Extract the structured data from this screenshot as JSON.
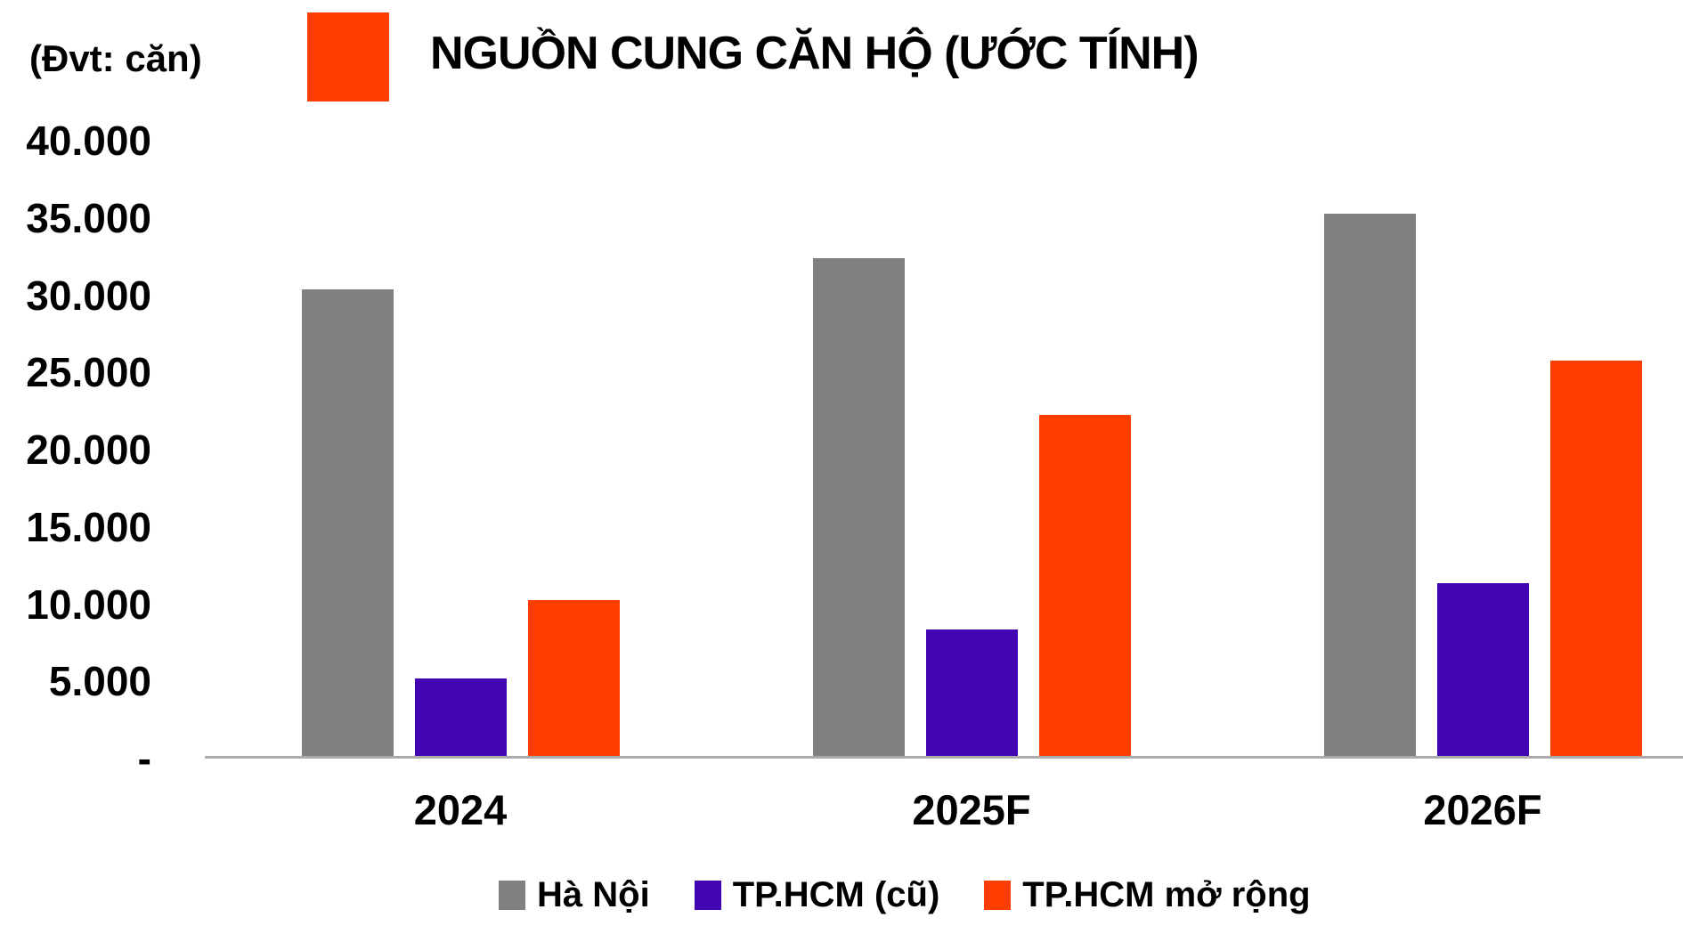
{
  "chart_data": {
    "type": "bar",
    "title": "NGUỒN CUNG CĂN HỘ (ƯỚC TÍNH)",
    "unit_label": "(Đvt: căn)",
    "title_marker_color": "#FF3D00",
    "categories": [
      "2024",
      "2025F",
      "2026F"
    ],
    "series": [
      {
        "name": "Hà Nội",
        "color": "#808080",
        "values": [
          30200,
          32200,
          35100
        ]
      },
      {
        "name": "TP.HCM (cũ)",
        "color": "#4105B4",
        "values": [
          5000,
          8200,
          11200
        ]
      },
      {
        "name": "TP.HCM mở rộng",
        "color": "#FF3D00",
        "values": [
          10100,
          22100,
          25600
        ]
      }
    ],
    "y_axis": {
      "min": 0,
      "max": 40000,
      "step": 5000,
      "ticks": [
        {
          "value": 40000,
          "label": "40.000"
        },
        {
          "value": 35000,
          "label": "35.000"
        },
        {
          "value": 30000,
          "label": "30.000"
        },
        {
          "value": 25000,
          "label": "25.000"
        },
        {
          "value": 20000,
          "label": "20.000"
        },
        {
          "value": 15000,
          "label": "15.000"
        },
        {
          "value": 10000,
          "label": "10.000"
        },
        {
          "value": 5000,
          "label": "5.000"
        },
        {
          "value": 0,
          "label": "-"
        }
      ]
    },
    "axis_line_color": "#ABABAB",
    "grid": false,
    "legend_position": "bottom"
  }
}
